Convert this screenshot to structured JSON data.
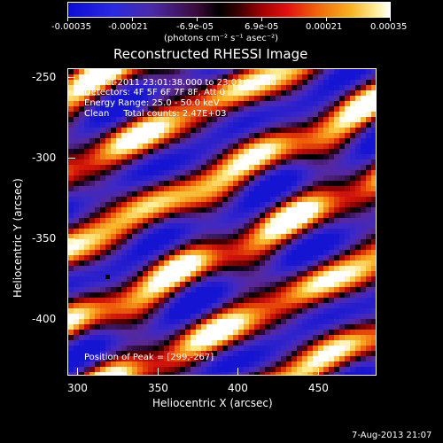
{
  "colorbar": {
    "tick_labels": [
      "-0.00035",
      "-0.00021",
      "-6.9e-05",
      "6.9e-05",
      "0.00021",
      "0.00035"
    ],
    "units": "(photons cm⁻² s⁻¹ asec⁻²)"
  },
  "plot": {
    "title": "Reconstructed RHESSI Image",
    "xlabel": "Heliocentric X (arcsec)",
    "ylabel": "Heliocentric Y (arcsec)",
    "x_ticks": [
      "300",
      "350",
      "400",
      "450"
    ],
    "y_ticks": [
      "-250",
      "-300",
      "-350",
      "-400"
    ],
    "info_lines": [
      "12-Oct-2011 23:01:38.000 to 23:03:16.000",
      "Detectors: 4F 5F 6F 7F 8F, Att 0",
      "Energy Range: 25.0 - 50.0 keV",
      "Clean     Total counts: 2.47E+03"
    ],
    "peak_label": "Position of Peak = [299,-267]"
  },
  "footer": {
    "timestamp": "7-Aug-2013 21:07"
  },
  "chart_data": {
    "type": "heatmap",
    "title": "Reconstructed RHESSI Image",
    "xlabel": "Heliocentric X (arcsec)",
    "ylabel": "Heliocentric Y (arcsec)",
    "xlim": [
      295,
      485
    ],
    "ylim": [
      -435,
      -245
    ],
    "colorbar_range": [
      -0.00035,
      0.00035
    ],
    "colorbar_units": "(photons cm⁻² s⁻¹ asec⁻²)",
    "peak_position": [
      299,
      -267
    ],
    "pattern": "diagonal fringe stripes running from upper-left to lower-right"
  }
}
